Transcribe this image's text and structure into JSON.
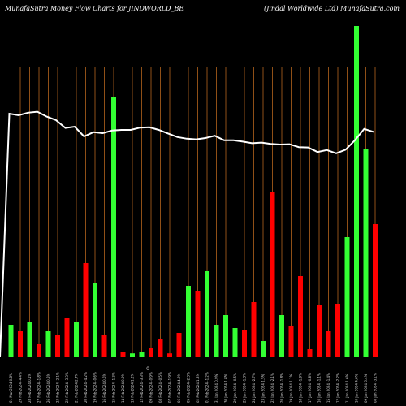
{
  "header": {
    "title_left": "MunafaSutra  Money Flow  Charts for JINDWORLD_BE",
    "title_right": "(Jindal Worldwide   Ltd) MunafaSutra.com"
  },
  "colors": {
    "up": "#33ff33",
    "down": "#ff0000",
    "grid": "#b5651d",
    "line": "#ffffff",
    "background": "#000000"
  },
  "chart_data": {
    "type": "bar",
    "title": "MunafaSutra  Money Flow  Charts for JINDWORLD_BE",
    "center_label": "0",
    "ylim": [
      0,
      100
    ],
    "categories": [
      "01 Mar 2024 0.8%",
      "29 Feb 2024 -4.4%",
      "28 Feb 2024 0.1%",
      "27 Feb 2024 -1.8%",
      "26 Feb 2024 0.5%",
      "23 Feb 2024 -2.1%",
      "22 Feb 2024 -3.3%",
      "21 Feb 2024 2.7%",
      "20 Feb 2024 -4.2%",
      "19 Feb 2024 -0.6%",
      "16 Feb 2024 0.6%",
      "15 Feb 2024 -1.3%",
      "14 Feb 2024 0.9%",
      "13 Feb 2024 1.2%",
      "12 Feb 2024 -3.3%",
      "09 Feb 2024 -0.9%",
      "08 Feb 2024 -0.5%",
      "07 Feb 2024 -1.9%",
      "06 Feb 2024 4.2%",
      "05 Feb 2024 -2.3%",
      "02 Feb 2024 1.8%",
      "01 Feb 2024 -1.2%",
      "31 Jan 2024 0.9%",
      "30 Jan 2024 1.8%",
      "29 Jan 2024 -0.5%",
      "25 Jan 2024 -1.3%",
      "24 Jan 2024 -2.7%",
      "23 Jan 2024 1.5%",
      "22 Jan 2024 -2.1%",
      "20 Jan 2024 -1.8%",
      "19 Jan 2024 1.1%",
      "18 Jan 2024 -1.9%",
      "17 Jan 2024 -0.8%",
      "16 Jan 2024 -1.1%",
      "15 Jan 2024 -1.4%",
      "12 Jan 2024 -2.2%",
      "11 Jan 2024 1.6%",
      "10 Jan 2024 4.6%",
      "09 Jan 2024 6.4%",
      "08 Jan 2024 -3.1%"
    ],
    "bars": [
      {
        "value": 10,
        "color": "up"
      },
      {
        "value": 8,
        "color": "down"
      },
      {
        "value": 11,
        "color": "up"
      },
      {
        "value": 4,
        "color": "down"
      },
      {
        "value": 8,
        "color": "up"
      },
      {
        "value": 7,
        "color": "down"
      },
      {
        "value": 12,
        "color": "down"
      },
      {
        "value": 11,
        "color": "up"
      },
      {
        "value": 29,
        "color": "down"
      },
      {
        "value": 23,
        "color": "up"
      },
      {
        "value": 7,
        "color": "down"
      },
      {
        "value": 80,
        "color": "up"
      },
      {
        "value": 1.5,
        "color": "down"
      },
      {
        "value": 1.2,
        "color": "up"
      },
      {
        "value": 1.5,
        "color": "up"
      },
      {
        "value": 3,
        "color": "down"
      },
      {
        "value": 5.5,
        "color": "down"
      },
      {
        "value": 1.2,
        "color": "down"
      },
      {
        "value": 7.5,
        "color": "down"
      },
      {
        "value": 22,
        "color": "up"
      },
      {
        "value": 20.5,
        "color": "down"
      },
      {
        "value": 26.5,
        "color": "up"
      },
      {
        "value": 10,
        "color": "up"
      },
      {
        "value": 13,
        "color": "up"
      },
      {
        "value": 9,
        "color": "up"
      },
      {
        "value": 8.5,
        "color": "down"
      },
      {
        "value": 17,
        "color": "down"
      },
      {
        "value": 5,
        "color": "up"
      },
      {
        "value": 51,
        "color": "down"
      },
      {
        "value": 13,
        "color": "up"
      },
      {
        "value": 9.5,
        "color": "down"
      },
      {
        "value": 25,
        "color": "down"
      },
      {
        "value": 2.5,
        "color": "down"
      },
      {
        "value": 16,
        "color": "down"
      },
      {
        "value": 8,
        "color": "down"
      },
      {
        "value": 16.5,
        "color": "down"
      },
      {
        "value": 37,
        "color": "up"
      },
      {
        "value": 102,
        "color": "up"
      },
      {
        "value": 64,
        "color": "up"
      },
      {
        "value": 41,
        "color": "down"
      }
    ],
    "line_values": [
      0,
      75,
      74.5,
      75.3,
      75.6,
      74.1,
      73,
      70.6,
      71,
      68,
      69.3,
      69,
      69.8,
      70,
      70,
      70.7,
      70.8,
      70,
      68.9,
      67.8,
      67.3,
      67.1,
      67.5,
      68.2,
      66.8,
      66.8,
      66.4,
      65.9,
      66.1,
      65.7,
      65.5,
      65.6,
      64.7,
      64.6,
      63.2,
      63.8,
      62.8,
      63.9,
      66.8,
      70.3,
      69.4
    ]
  }
}
